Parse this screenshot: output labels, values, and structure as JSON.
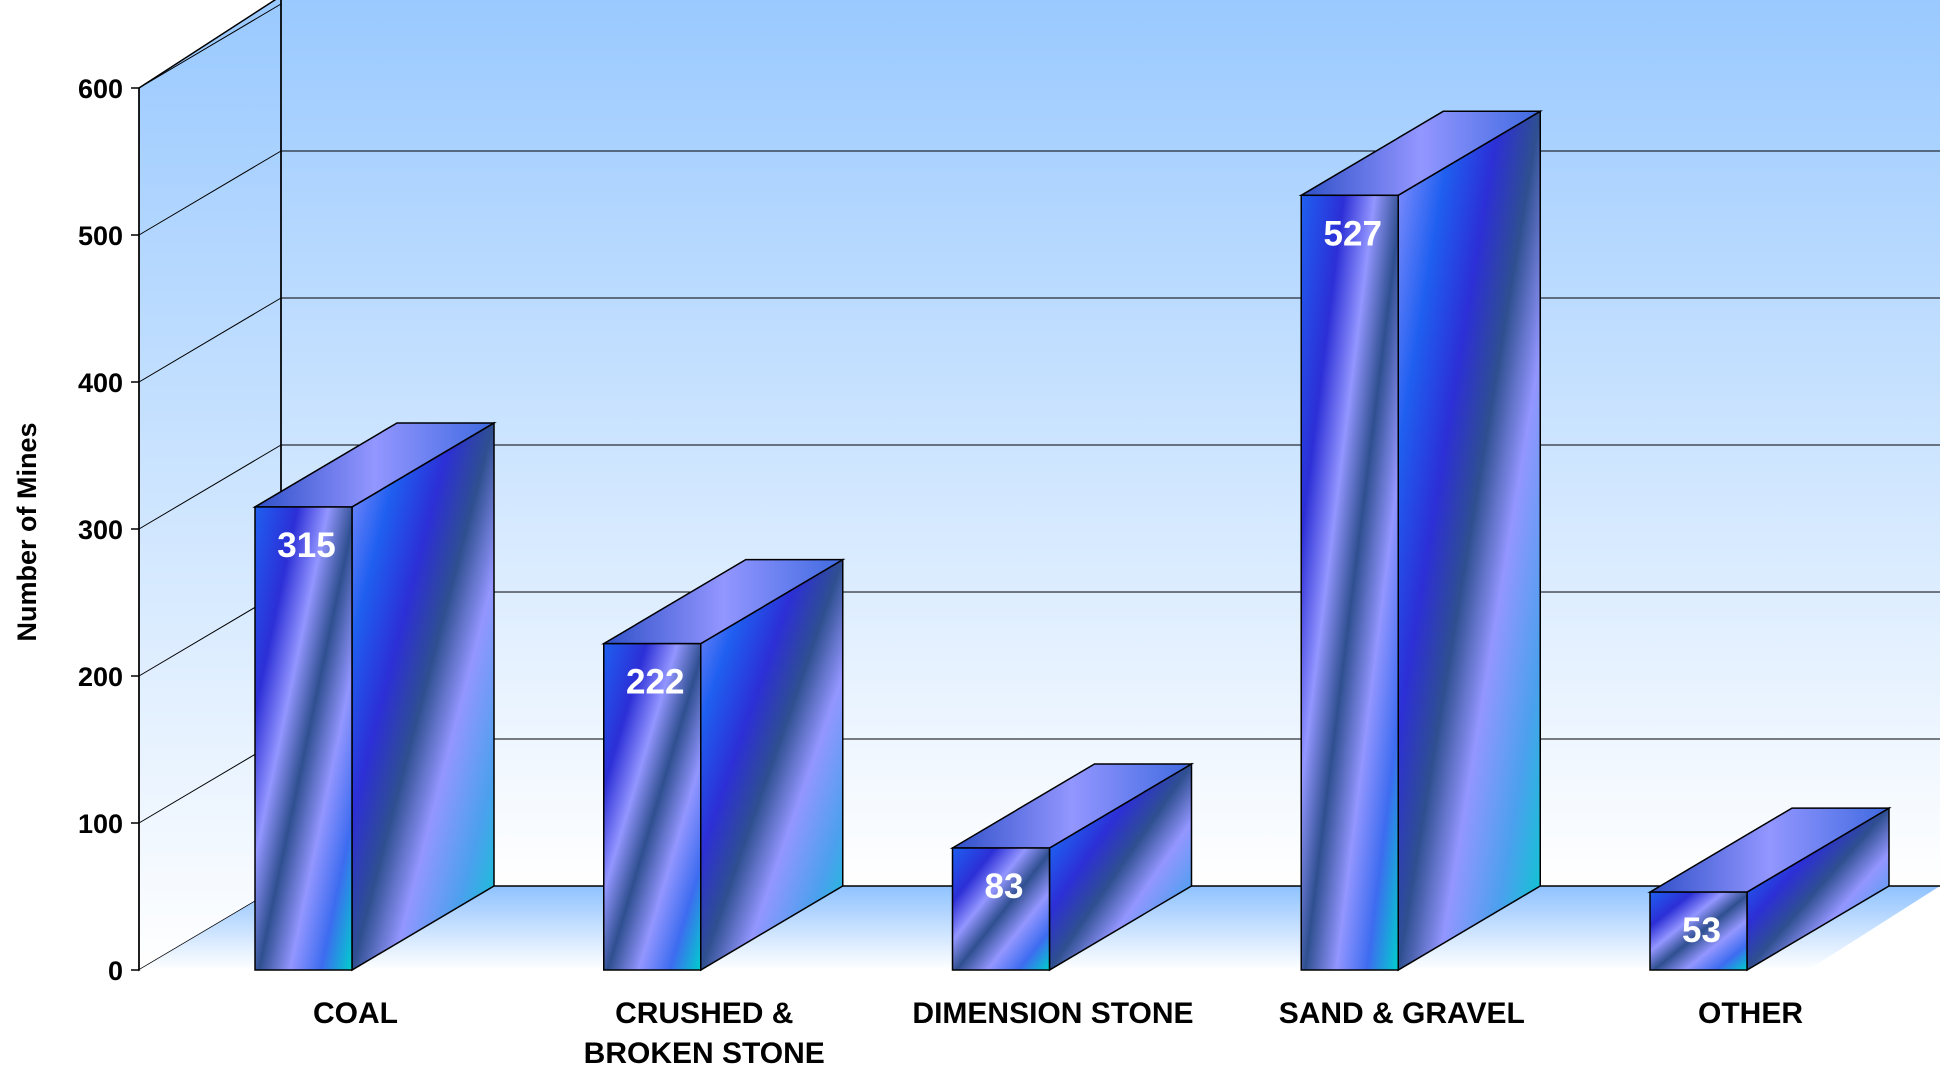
{
  "chart_data": {
    "type": "bar",
    "title": "",
    "xlabel": "",
    "ylabel": "Number of Mines",
    "categories": [
      [
        "COAL"
      ],
      [
        "CRUSHED &",
        "BROKEN STONE"
      ],
      [
        "DIMENSION STONE"
      ],
      [
        "SAND & GRAVEL"
      ],
      [
        "OTHER"
      ]
    ],
    "values": [
      315,
      222,
      83,
      527,
      53
    ],
    "ylim": [
      0,
      600
    ],
    "yticks": [
      "0",
      "100",
      "200",
      "300",
      "400",
      "500",
      "600"
    ],
    "grid": true,
    "legend": "none",
    "style": "3d-column",
    "colors": {
      "wall_top": "#99c9ff",
      "wall_bottom": "#ffffff",
      "bar_blue": "#1f5ff0",
      "bar_violet": "#9396ff",
      "bar_teal": "#00cfcc",
      "bar_dark": "#2f50c8"
    }
  }
}
